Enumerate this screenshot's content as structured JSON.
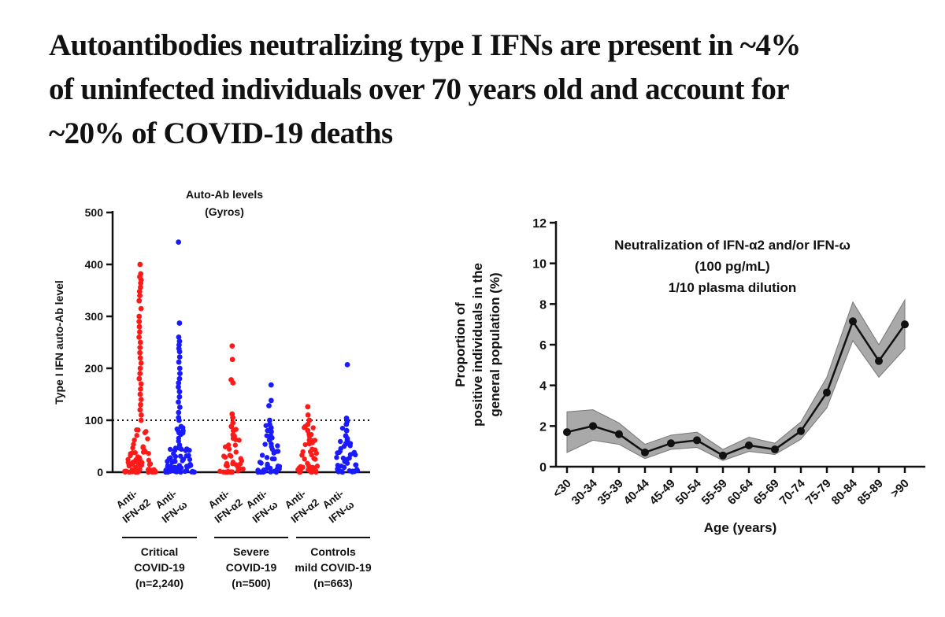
{
  "headline": {
    "lines": [
      "Autoantibodies neutralizing type I IFNs are present in ~4%",
      "of uninfected individuals over 70 years old and account for",
      "~20% of COVID-19 deaths"
    ]
  },
  "chart_data": [
    {
      "type": "scatter",
      "title": [
        "Auto-Ab levels",
        "(Gyros)"
      ],
      "ylabel": "Type I IFN auto-Ab level",
      "ylim": [
        0,
        500
      ],
      "yticks": [
        "0",
        "100",
        "200",
        "300",
        "400",
        "500"
      ],
      "threshold": 100,
      "colors": {
        "anti_ifn_a2": "#ff1a1a",
        "anti_ifn_w": "#1a1aff"
      },
      "categories": [
        {
          "label": [
            "Anti-",
            "IFN-α2"
          ],
          "color": "#ff1a1a",
          "high_values": [
            400,
            382,
            376,
            370,
            364,
            356,
            348,
            340,
            330,
            315,
            300,
            290,
            280,
            270,
            260,
            250,
            240,
            230,
            220,
            210,
            200,
            190,
            180,
            170,
            160,
            150,
            140,
            130,
            120,
            110,
            100
          ]
        },
        {
          "label": [
            "Anti-",
            "IFN-ω"
          ],
          "color": "#1a1aff",
          "high_values": [
            443,
            287,
            260,
            252,
            245,
            238,
            232,
            222,
            212,
            200,
            190,
            180,
            172,
            164,
            155,
            145,
            135,
            125,
            115,
            105,
            100
          ]
        },
        {
          "label": [
            "Anti-",
            "IFN-α2"
          ],
          "color": "#ff1a1a",
          "high_values": [
            243,
            217,
            178,
            172,
            112,
            105,
            95,
            88,
            80,
            72,
            65
          ]
        },
        {
          "label": [
            "Anti-",
            "IFN-ω"
          ],
          "color": "#1a1aff",
          "high_values": [
            168,
            138,
            128,
            100,
            92,
            85,
            78,
            70,
            62
          ]
        },
        {
          "label": [
            "Anti-",
            "IFN-α2"
          ],
          "color": "#ff1a1a",
          "high_values": [
            126,
            110,
            100,
            92,
            80,
            70,
            62,
            55
          ]
        },
        {
          "label": [
            "Anti-",
            "IFN-ω"
          ],
          "color": "#1a1aff",
          "high_values": [
            207,
            104,
            98,
            92,
            80,
            70,
            62,
            55
          ]
        }
      ],
      "groups": [
        {
          "lines": [
            "Critical",
            "COVID-19",
            "(n=2,240)"
          ]
        },
        {
          "lines": [
            "Severe",
            "COVID-19",
            "(n=500)"
          ]
        },
        {
          "lines": [
            "Controls",
            "mild COVID-19",
            "(n=663)"
          ]
        }
      ]
    },
    {
      "type": "line",
      "annotation": [
        "Neutralization of IFN-α2 and/or IFN-ω",
        "(100 pg/mL)",
        "1/10 plasma dilution"
      ],
      "xlabel": "Age (years)",
      "ylabel": [
        "Proportion of",
        "positive individuals in the",
        "general population  (%)"
      ],
      "ylim": [
        0,
        12
      ],
      "yticks": [
        "0",
        "2",
        "4",
        "6",
        "8",
        "10",
        "12"
      ],
      "categories": [
        "<30",
        "30-34",
        "35-39",
        "40-44",
        "45-49",
        "50-54",
        "55-59",
        "60-64",
        "65-69",
        "70-74",
        "75-79",
        "80-84",
        "85-89",
        ">90"
      ],
      "series": [
        {
          "values": [
            1.7,
            2.0,
            1.6,
            0.7,
            1.15,
            1.3,
            0.55,
            1.05,
            0.85,
            1.75,
            3.65,
            7.15,
            5.2,
            7.0
          ],
          "lower": [
            0.7,
            1.3,
            1.1,
            0.4,
            0.85,
            0.95,
            0.3,
            0.75,
            0.6,
            1.35,
            2.9,
            6.2,
            4.4,
            5.8
          ],
          "upper": [
            2.7,
            2.8,
            2.15,
            1.1,
            1.55,
            1.7,
            0.85,
            1.45,
            1.15,
            2.2,
            4.4,
            8.1,
            6.0,
            8.2
          ]
        }
      ]
    }
  ]
}
